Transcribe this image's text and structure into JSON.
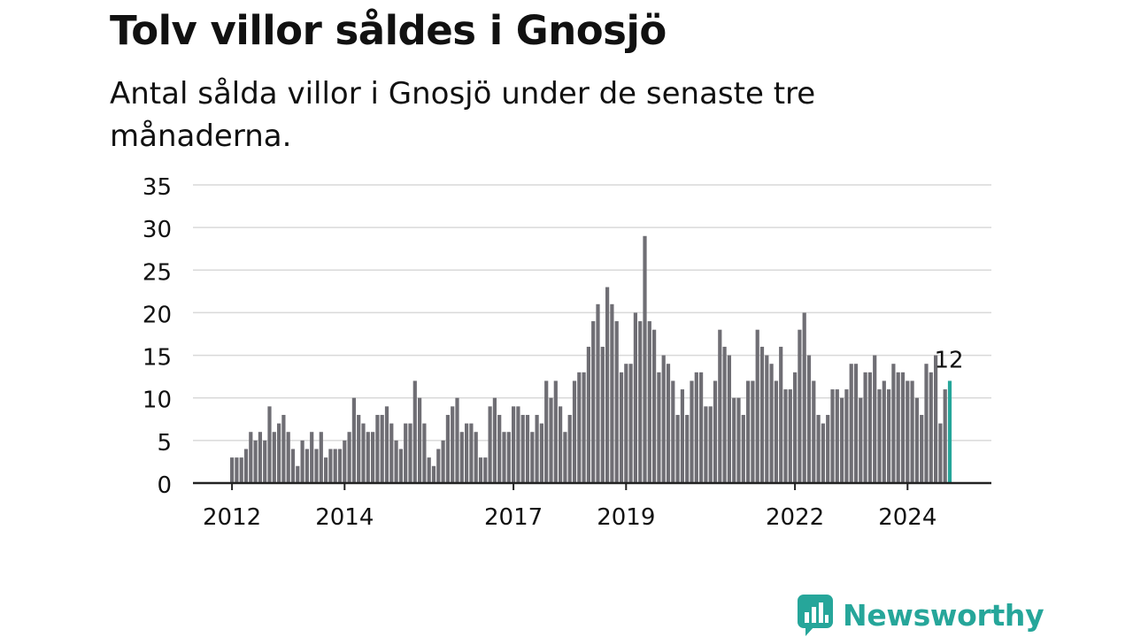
{
  "title": "Tolv villor såldes i Gnosjö",
  "subtitle": "Antal sålda villor i Gnosjö under de senaste tre månaderna.",
  "logo": {
    "text": "Newsworthy",
    "icon": "newsworthy-logo-icon"
  },
  "colors": {
    "bar": "#6f6e74",
    "highlight": "#26a69a",
    "grid": "#d9d9d9",
    "axis": "#222222",
    "text": "#111111"
  },
  "chart_data": {
    "type": "bar",
    "y_ticks": [
      0,
      5,
      10,
      15,
      20,
      25,
      30,
      35
    ],
    "ylim": [
      0,
      35
    ],
    "grid": true,
    "x_tick_labels": [
      "2012",
      "2014",
      "2017",
      "2019",
      "2022",
      "2024"
    ],
    "x_tick_index": [
      0,
      24,
      60,
      84,
      120,
      144
    ],
    "highlight_label": "12",
    "values": [
      3,
      3,
      3,
      4,
      6,
      5,
      6,
      5,
      9,
      6,
      7,
      8,
      6,
      4,
      2,
      5,
      4,
      6,
      4,
      6,
      3,
      4,
      4,
      4,
      5,
      6,
      10,
      8,
      7,
      6,
      6,
      8,
      8,
      9,
      7,
      5,
      4,
      7,
      7,
      12,
      10,
      7,
      3,
      2,
      4,
      5,
      8,
      9,
      10,
      6,
      7,
      7,
      6,
      3,
      3,
      9,
      10,
      8,
      6,
      6,
      9,
      9,
      8,
      8,
      6,
      8,
      7,
      12,
      10,
      12,
      9,
      6,
      8,
      12,
      13,
      13,
      16,
      19,
      21,
      16,
      23,
      21,
      19,
      13,
      14,
      14,
      20,
      19,
      29,
      19,
      18,
      13,
      15,
      14,
      12,
      8,
      11,
      8,
      12,
      13,
      13,
      9,
      9,
      12,
      18,
      16,
      15,
      10,
      10,
      8,
      12,
      12,
      18,
      16,
      15,
      14,
      12,
      16,
      11,
      11,
      13,
      18,
      20,
      15,
      12,
      8,
      7,
      8,
      11,
      11,
      10,
      11,
      14,
      14,
      10,
      13,
      13,
      15,
      11,
      12,
      11,
      14,
      13,
      13,
      12,
      12,
      10,
      8,
      14,
      13,
      15,
      7,
      11,
      12
    ]
  }
}
